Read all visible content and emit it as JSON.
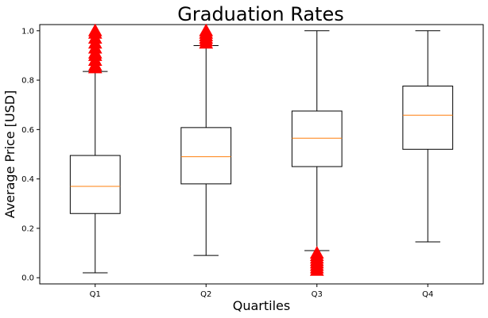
{
  "chart_data": {
    "type": "box",
    "title": "Graduation Rates",
    "xlabel": "Quartiles",
    "ylabel": "Average Price [USD]",
    "ylim": [
      -0.025,
      1.025
    ],
    "yticks": [
      "0.0",
      "0.2",
      "0.4",
      "0.6",
      "0.8",
      "1.0"
    ],
    "categories": [
      "Q1",
      "Q2",
      "Q3",
      "Q4"
    ],
    "boxes": [
      {
        "category": "Q1",
        "whisker_low": 0.02,
        "q1": 0.26,
        "median": 0.37,
        "q3": 0.495,
        "whisker_high": 0.835,
        "outliers": [
          0.85,
          0.86,
          0.88,
          0.9,
          0.91,
          0.93,
          0.95,
          0.97,
          0.99,
          1.0
        ]
      },
      {
        "category": "Q2",
        "whisker_low": 0.09,
        "q1": 0.38,
        "median": 0.49,
        "q3": 0.608,
        "whisker_high": 0.94,
        "outliers": [
          0.95,
          0.96,
          0.97,
          0.98,
          0.99,
          1.0
        ]
      },
      {
        "category": "Q3",
        "whisker_low": 0.11,
        "q1": 0.45,
        "median": 0.565,
        "q3": 0.675,
        "whisker_high": 1.0,
        "outliers": [
          0.03,
          0.04,
          0.05,
          0.06,
          0.07,
          0.08,
          0.09,
          0.1
        ]
      },
      {
        "category": "Q4",
        "whisker_low": 0.145,
        "q1": 0.52,
        "median": 0.658,
        "q3": 0.776,
        "whisker_high": 1.0,
        "outliers": []
      }
    ],
    "colors": {
      "box": "#000000",
      "median": "#ff7f0e",
      "outlier": "#ff0000"
    },
    "outlier_marker": "triangle-up",
    "grid": false,
    "legend": "none"
  }
}
